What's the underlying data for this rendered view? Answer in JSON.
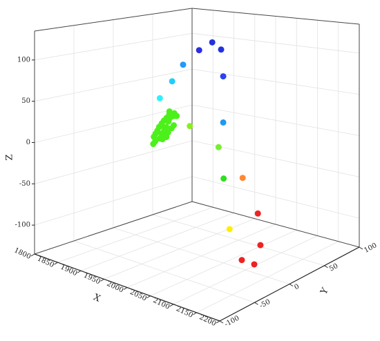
{
  "chart_data": {
    "type": "scatter3d",
    "x_label": "X",
    "y_label": "Y",
    "z_label": "Z",
    "xlim": [
      1800,
      2200
    ],
    "xticks": [
      1800,
      1850,
      1900,
      1950,
      2000,
      2050,
      2100,
      2150,
      2200
    ],
    "ylim": [
      -100,
      100
    ],
    "yticks": [
      -100,
      -50,
      0,
      50,
      100
    ],
    "zlim": [
      -135,
      135
    ],
    "zticks": [
      -100,
      -50,
      0,
      50,
      100
    ],
    "grid": true,
    "x": [
      1802,
      1805,
      1808,
      1810,
      1812,
      1815,
      1818,
      1820,
      1822,
      1825,
      1828,
      1830,
      1832,
      1835,
      1838,
      1840,
      1842,
      1845,
      1848,
      1850,
      1806,
      1814,
      1820,
      1826,
      1834,
      1812,
      1844,
      1816,
      1804,
      1830,
      1854,
      1885,
      1906,
      1911,
      1816,
      1805,
      1802,
      1911,
      1832,
      1900,
      1912,
      1957,
      1993,
      2064,
      2134,
      2156,
      2168
    ],
    "y": [
      70,
      65,
      60,
      72,
      55,
      50,
      62,
      45,
      58,
      40,
      52,
      35,
      48,
      42,
      38,
      55,
      30,
      45,
      36,
      40,
      68,
      64,
      66,
      48,
      32,
      74,
      50,
      58,
      62,
      44,
      80,
      80,
      80,
      80,
      80,
      72,
      58,
      80,
      80,
      80,
      80,
      80,
      80,
      0,
      0,
      -40,
      -30
    ],
    "z": [
      -5,
      -8,
      -10,
      -3,
      -12,
      -15,
      -6,
      -18,
      -9,
      -20,
      -14,
      -22,
      -16,
      -19,
      -24,
      -11,
      -25,
      -17,
      -23,
      -21,
      0,
      -2,
      -4,
      -28,
      -30,
      -7,
      -13,
      -30,
      -26,
      -10,
      85,
      98,
      90,
      55,
      62,
      40,
      20,
      -6,
      -20,
      -40,
      -80,
      -73,
      -114,
      -92,
      -100,
      -98,
      -105
    ],
    "colors": [
      "#4cf01a",
      "#4cf01a",
      "#4cf01a",
      "#4cf01a",
      "#4cf01a",
      "#4cf01a",
      "#4cf01a",
      "#4cf01a",
      "#4cf01a",
      "#4cf01a",
      "#4cf01a",
      "#4cf01a",
      "#4cf01a",
      "#4cf01a",
      "#4cf01a",
      "#4cf01a",
      "#4cf01a",
      "#4cf01a",
      "#4cf01a",
      "#4cf01a",
      "#4cf01a",
      "#4cf01a",
      "#4cf01a",
      "#4cf01a",
      "#4cf01a",
      "#4cf01a",
      "#4cf01a",
      "#4cf01a",
      "#4cf01a",
      "#4cf01a",
      "#2a2ee0",
      "#2233dd",
      "#2233dd",
      "#2a44ee",
      "#2299ff",
      "#22ccff",
      "#33eeff",
      "#2299ee",
      "#88ee22",
      "#77ee33",
      "#33dd22",
      "#ff8833",
      "#ee2222",
      "#ffee00",
      "#ee2222",
      "#ee2222",
      "#ee2222"
    ]
  }
}
